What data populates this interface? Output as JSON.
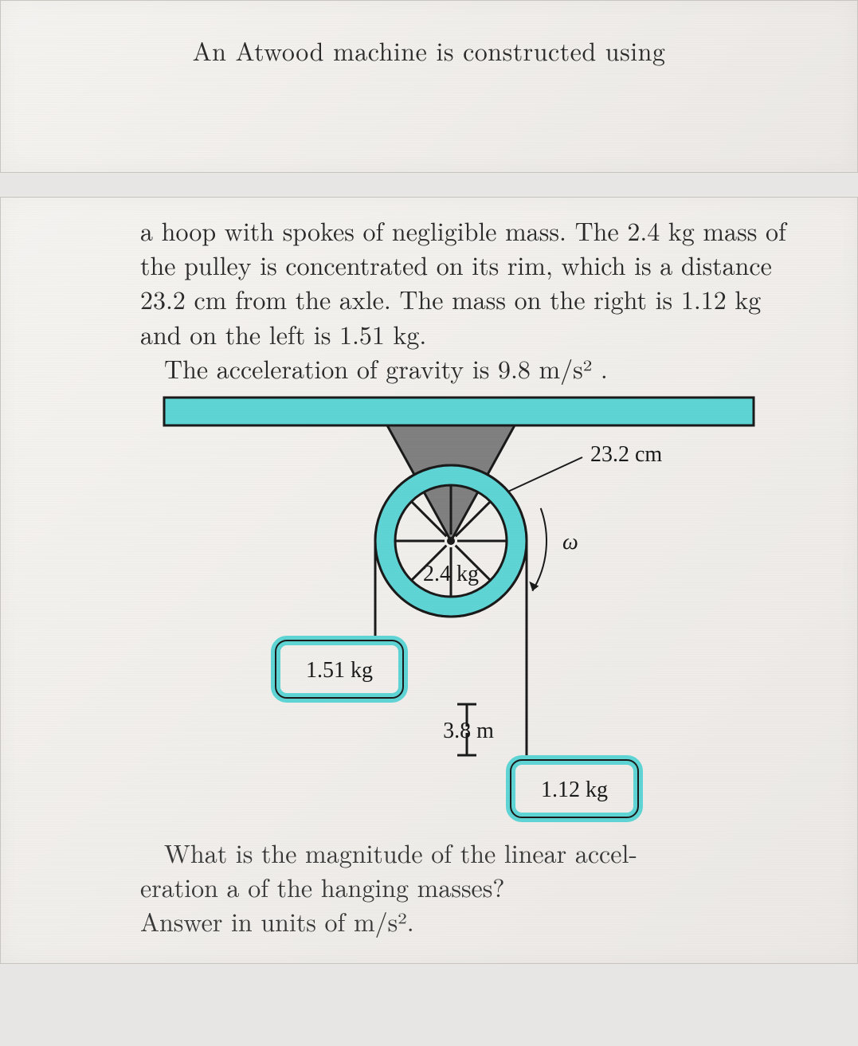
{
  "title": "An Atwood machine is constructed using",
  "paragraph1_noindent": "a hoop with spokes of negligible mass. The 2.4 kg mass of the pulley is concentrated on its rim, which is a distance 23.2 cm from the axle. The mass on the right is 1.12 kg and on the left is 1.51 kg.",
  "paragraph1_indent": "The acceleration of gravity is 9.8 m/s² .",
  "question_line1": "What is the magnitude of the linear accel-",
  "question_line2": "eration a of the hanging masses?",
  "question_line3": "Answer in units of  m/s².",
  "diagram": {
    "type": "physics-diagram",
    "radius_label": "23.2 cm",
    "omega_label": "ω",
    "pulley_mass_label": "2.4 kg",
    "left_mass_label": "1.51 kg",
    "right_mass_label": "1.12 kg",
    "height_label": "3.8 m",
    "colors": {
      "beam_fill": "#5fd4d4",
      "beam_stroke": "#1a1a1a",
      "bracket_fill": "#808080",
      "pulley_rim_fill": "#5fd4d4",
      "mass_fill": "#5fd4d4",
      "mass_stroke": "#1a1a1a",
      "string": "#1a1a1a",
      "text": "#1a1a1a"
    },
    "label_fontsize": 28,
    "beam_height": 35,
    "pulley_radius_outer": 95,
    "pulley_radius_inner": 70,
    "num_spokes": 8
  }
}
